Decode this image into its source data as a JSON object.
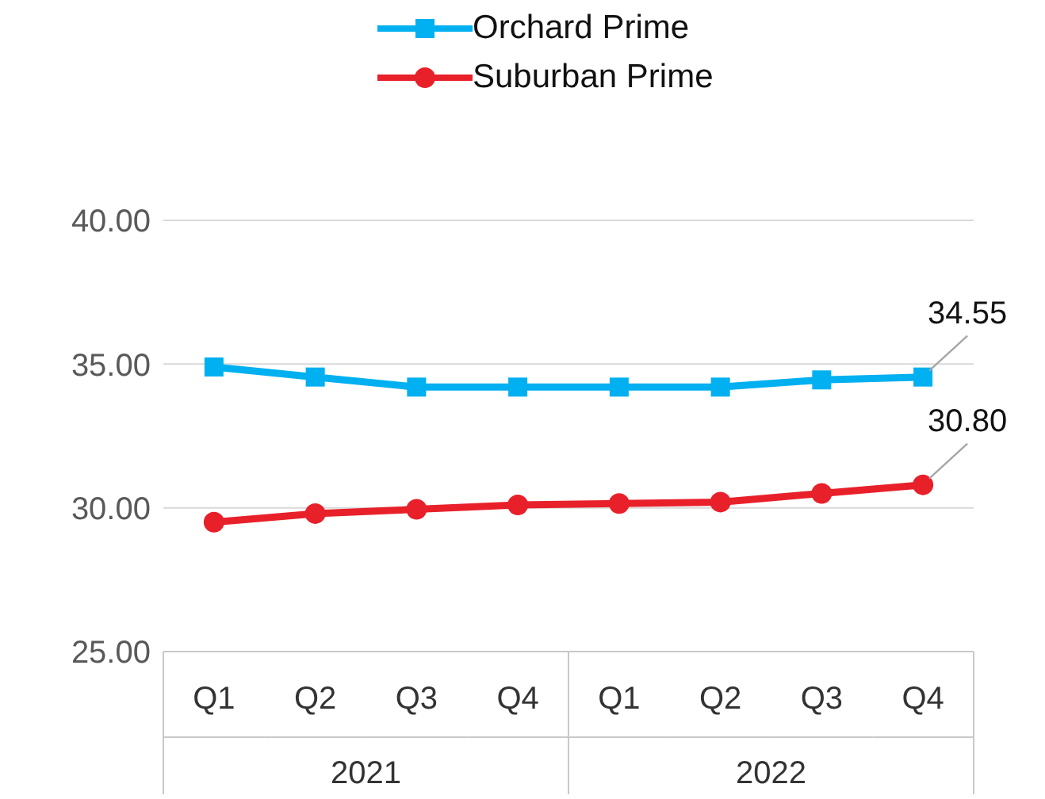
{
  "chart_data": {
    "type": "line",
    "categories": [
      "Q1",
      "Q2",
      "Q3",
      "Q4",
      "Q1",
      "Q2",
      "Q3",
      "Q4"
    ],
    "series": [
      {
        "name": "Orchard Prime",
        "color": "#00b0f0",
        "marker": "square",
        "values": [
          34.9,
          34.55,
          34.2,
          34.2,
          34.2,
          34.2,
          34.45,
          34.55
        ],
        "value_labels": [
          null,
          null,
          null,
          null,
          null,
          null,
          null,
          "34.55"
        ]
      },
      {
        "name": "Suburban Prime",
        "color": "#e8202a",
        "marker": "circle",
        "values": [
          29.5,
          29.8,
          29.95,
          30.1,
          30.15,
          30.2,
          30.5,
          30.8
        ],
        "value_labels": [
          null,
          null,
          null,
          null,
          null,
          null,
          null,
          "30.80"
        ]
      }
    ],
    "ylim": [
      25,
      40
    ],
    "yticks": [
      {
        "value": 25,
        "label": "25.00"
      },
      {
        "value": 30,
        "label": "30.00"
      },
      {
        "value": 35,
        "label": "35.00"
      },
      {
        "value": 40,
        "label": "40.00"
      }
    ],
    "grid": "y",
    "legend": "top",
    "line_style": "solid",
    "annotations": [
      "2021",
      "2022"
    ]
  }
}
